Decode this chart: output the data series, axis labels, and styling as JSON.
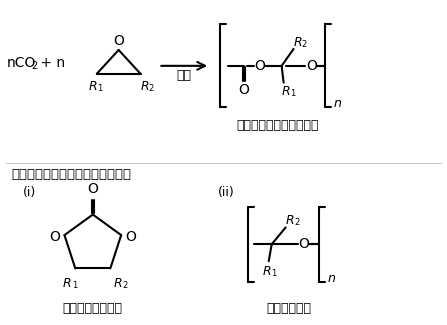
{
  "bg_color": "#ffffff",
  "text_color": "#000000",
  "line_color": "#000000",
  "line_width": 1.5,
  "label_catalyst": "触媒",
  "label_polymer": "脂肪族ポリカーボネート",
  "label_byproduct": "競合する副反応で得られる生成物",
  "label_i": "(i)",
  "label_ii": "(ii)",
  "label_cyclic": "環状カーボネート",
  "label_polyether": "ポリエーテル",
  "figsize": [
    4.47,
    3.25
  ],
  "dpi": 100
}
